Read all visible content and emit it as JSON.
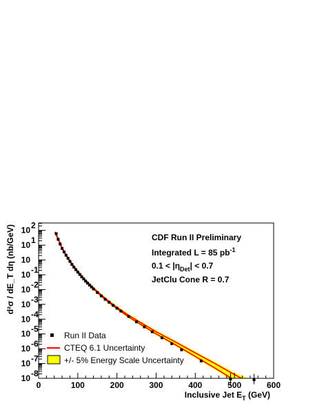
{
  "chart_data": {
    "type": "scatter",
    "xlabel_main": "Inclusive Jet E",
    "xlabel_sub": "T",
    "xlabel_unit": " (GeV)",
    "ylabel": "d²σ / dE_T dη (nb/GeV)",
    "xlim": [
      0,
      600
    ],
    "ylim_log10": [
      -8,
      2.5
    ],
    "y_scale": "log",
    "grid": false,
    "legend_placement": "bottom-left",
    "x_ticks": [
      "0",
      "100",
      "200",
      "300",
      "400",
      "500",
      "600"
    ],
    "y_tick_base": "10",
    "y_tick_exponents": [
      "-8",
      "-7",
      "-6",
      "-5",
      "-4",
      "-3",
      "-2",
      "-1",
      "",
      "1",
      "2"
    ],
    "info": {
      "line1": "CDF Run II Preliminary",
      "line2_pre": "Integrated L = 85 pb",
      "line2_sup": "-1",
      "line3_pre": "0.1 < |η",
      "line3_sub": "Det",
      "line3_post": "| < 0.7",
      "line4": "JetClu Cone R = 0.7"
    },
    "legend": {
      "data_label": "Run II Data",
      "theory_label": "CTEQ 6.1 Uncertainty",
      "band_label": "+/- 5% Energy Scale Uncertainty"
    },
    "series": [
      {
        "name": "Run II Data",
        "kind": "points",
        "color": "#000000",
        "x": [
          45,
          50,
          55,
          60,
          65,
          70,
          75,
          80,
          85,
          90,
          95,
          100,
          105,
          110,
          115,
          120,
          125,
          130,
          135,
          140,
          150,
          160,
          170,
          180,
          190,
          200,
          210,
          230,
          250,
          270,
          290,
          315,
          340,
          365,
          415,
          490,
          550
        ],
        "y": [
          60,
          25,
          12,
          6,
          3.5,
          2.1,
          1.3,
          0.8,
          0.5,
          0.33,
          0.22,
          0.15,
          0.105,
          0.072,
          0.052,
          0.037,
          0.027,
          0.02,
          0.015,
          0.011,
          0.0063,
          0.0037,
          0.0022,
          0.0014,
          0.00085,
          0.00055,
          0.00035,
          0.00015,
          6.5e-05,
          3e-05,
          1.4e-05,
          5.5e-06,
          2.2e-06,
          8.5e-07,
          1.5e-07,
          9e-09,
          8e-09
        ],
        "y_err_low": [
          null,
          null,
          null,
          null,
          null,
          null,
          null,
          null,
          null,
          null,
          null,
          null,
          null,
          null,
          null,
          null,
          null,
          null,
          null,
          null,
          null,
          null,
          null,
          null,
          null,
          null,
          null,
          null,
          null,
          null,
          null,
          null,
          null,
          null,
          null,
          4e-09,
          4e-09
        ],
        "y_err_high": [
          null,
          null,
          null,
          null,
          null,
          null,
          null,
          null,
          null,
          null,
          null,
          null,
          null,
          null,
          null,
          null,
          null,
          null,
          null,
          null,
          null,
          null,
          null,
          null,
          null,
          null,
          null,
          null,
          null,
          null,
          null,
          null,
          null,
          null,
          null,
          2.2e-08,
          2e-08
        ]
      },
      {
        "name": "CTEQ 6.1 Uncertainty",
        "kind": "band-lines",
        "color": "#ff0000",
        "x": [
          42,
          50,
          60,
          70,
          80,
          90,
          100,
          120,
          140,
          160,
          180,
          200,
          230,
          260,
          300,
          350,
          400,
          450,
          500,
          550,
          555
        ],
        "y_low": [
          70,
          24,
          5.8,
          2.0,
          0.78,
          0.33,
          0.15,
          0.036,
          0.011,
          0.0036,
          0.0013,
          0.00052,
          0.00014,
          4.5e-05,
          1e-05,
          1.8e-06,
          3e-07,
          5e-08,
          7.5e-09,
          1.3e-09,
          1.1e-09
        ],
        "y_high": [
          80,
          28,
          6.7,
          2.3,
          0.9,
          0.38,
          0.175,
          0.042,
          0.013,
          0.0043,
          0.00155,
          0.00063,
          0.00018,
          6e-05,
          1.4e-05,
          2.8e-06,
          5.2e-07,
          1e-07,
          1.8e-08,
          3.5e-09,
          3.1e-09
        ]
      },
      {
        "name": "+/- 5% Energy Scale Uncertainty",
        "kind": "band",
        "color": "#ffff00",
        "x": [
          42,
          50,
          60,
          70,
          80,
          90,
          100,
          120,
          140,
          160,
          180,
          200,
          230,
          260,
          300,
          350,
          400,
          450,
          500,
          550,
          555
        ],
        "y_low": [
          55,
          20,
          5.0,
          1.75,
          0.68,
          0.29,
          0.13,
          0.031,
          0.0095,
          0.0031,
          0.0011,
          0.00044,
          0.000118,
          3.7e-05,
          8.2e-06,
          1.45e-06,
          2.4e-07,
          3.9e-08,
          5.8e-09,
          1e-09,
          8.5e-10
        ],
        "y_high": [
          95,
          34,
          8.0,
          2.7,
          1.05,
          0.45,
          0.205,
          0.05,
          0.0155,
          0.0052,
          0.0019,
          0.00078,
          0.00022,
          7.4e-05,
          1.75e-05,
          3.5e-06,
          6.6e-07,
          1.3e-07,
          2.4e-08,
          7e-09,
          6.5e-09
        ]
      }
    ]
  }
}
